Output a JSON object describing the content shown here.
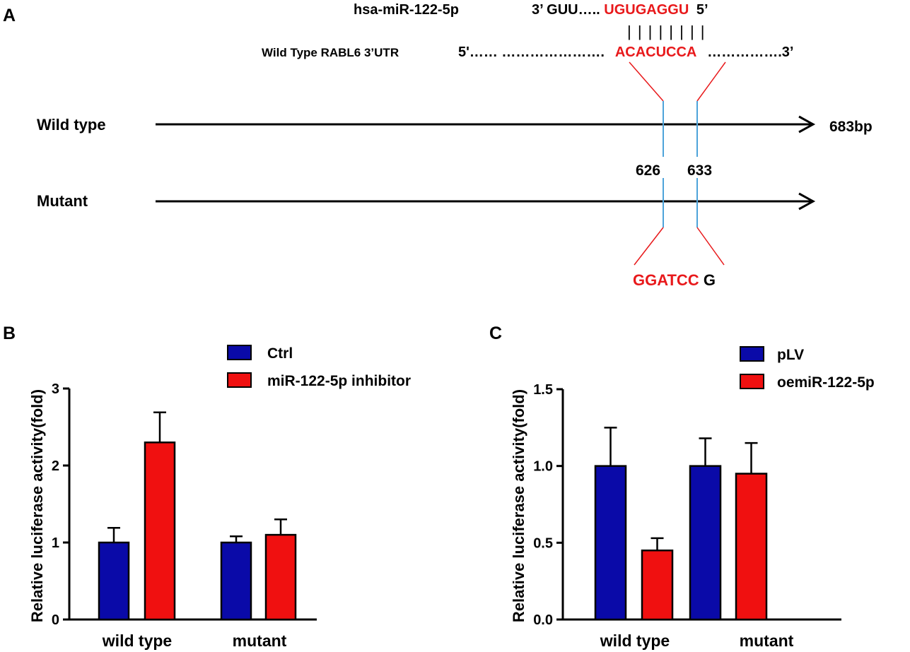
{
  "colors": {
    "ink": "#000000",
    "highlight": "#e8191b",
    "marker_line": "#4da3da",
    "series_blue": "#0a0aa8",
    "series_red": "#f01010"
  },
  "panel_a": {
    "label": "A",
    "mirna_name": "hsa-miR-122-5p",
    "mirna_prefix": "3’ GUU…..",
    "mirna_seed": "UGUGAGGU",
    "mirna_suffix": "5’",
    "pairing_marks": "| | | | | | | |",
    "utr_name": "Wild Type RABL6 3’UTR",
    "utr_prefix": "5'…… ………………….",
    "utr_site": "ACACUCCA",
    "utr_suffix": "…………….3’",
    "wild_type_label": "Wild type",
    "mutant_label": "Mutant",
    "length_label": "683bp",
    "pos_start": "626",
    "pos_end": "633",
    "mut_seq_red": "GGATCC",
    "mut_seq_black": "G"
  },
  "chart_data": [
    {
      "panel": "B",
      "type": "bar",
      "categories": [
        "wild type",
        "mutant"
      ],
      "series": [
        {
          "name": "Ctrl",
          "values": [
            1.0,
            1.0
          ],
          "errors": [
            0.19,
            0.08
          ]
        },
        {
          "name": "miR-122-5p inhibitor",
          "values": [
            2.3,
            1.1
          ],
          "errors": [
            0.39,
            0.2
          ]
        }
      ],
      "ylabel": "Relative luciferase activity(fold)",
      "xlabel": "",
      "ylim": [
        0,
        3
      ],
      "yticks": [
        "0",
        "1",
        "2",
        "3"
      ],
      "legend": "top-right"
    },
    {
      "panel": "C",
      "type": "bar",
      "categories": [
        "wild type",
        "mutant"
      ],
      "series": [
        {
          "name": "pLV",
          "values": [
            1.0,
            1.0
          ],
          "errors": [
            0.25,
            0.18
          ]
        },
        {
          "name": "oemiR-122-5p",
          "values": [
            0.45,
            0.95
          ],
          "errors": [
            0.08,
            0.2
          ]
        }
      ],
      "ylabel": "Relative luciferase activity(fold)",
      "xlabel": "",
      "ylim": [
        0,
        1.5
      ],
      "yticks": [
        "0.0",
        "0.5",
        "1.0",
        "1.5"
      ],
      "legend": "top-right"
    }
  ]
}
